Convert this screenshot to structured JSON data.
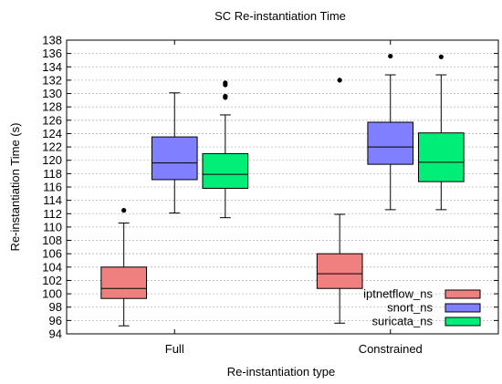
{
  "chart_data": {
    "type": "boxplot",
    "title": "SC Re-instantiation Time",
    "xlabel": "Re-instantiation type",
    "ylabel": "Re-instantiation Time (s)",
    "ylim": [
      94,
      138
    ],
    "yticks": [
      94,
      96,
      98,
      100,
      102,
      104,
      106,
      108,
      110,
      112,
      114,
      116,
      118,
      120,
      122,
      124,
      126,
      128,
      130,
      132,
      134,
      136,
      138
    ],
    "grid": true,
    "legend_position": "bottom-right",
    "categories": [
      "Full",
      "Constrained"
    ],
    "series": [
      {
        "name": "iptnetflow_ns",
        "color": "#f08080",
        "boxes": [
          {
            "whisker_low": 95.2,
            "q1": 99.3,
            "median": 100.8,
            "q3": 104.0,
            "whisker_high": 110.6,
            "outliers": [
              112.5
            ]
          },
          {
            "whisker_low": 95.6,
            "q1": 100.8,
            "median": 103.0,
            "q3": 106.0,
            "whisker_high": 111.9,
            "outliers": [
              132.0
            ]
          }
        ]
      },
      {
        "name": "snort_ns",
        "color": "#7f7fff",
        "boxes": [
          {
            "whisker_low": 112.1,
            "q1": 117.1,
            "median": 119.6,
            "q3": 123.5,
            "whisker_high": 130.1,
            "outliers": []
          },
          {
            "whisker_low": 112.6,
            "q1": 119.4,
            "median": 122.0,
            "q3": 125.7,
            "whisker_high": 132.8,
            "outliers": [
              135.6
            ]
          }
        ]
      },
      {
        "name": "suricata_ns",
        "color": "#00ee77",
        "boxes": [
          {
            "whisker_low": 111.4,
            "q1": 115.8,
            "median": 117.9,
            "q3": 121.0,
            "whisker_high": 126.8,
            "outliers": [
              129.4,
              129.6,
              131.3,
              131.6
            ]
          },
          {
            "whisker_low": 112.6,
            "q1": 116.8,
            "median": 119.7,
            "q3": 124.1,
            "whisker_high": 132.8,
            "outliers": [
              135.5
            ]
          }
        ]
      }
    ]
  }
}
